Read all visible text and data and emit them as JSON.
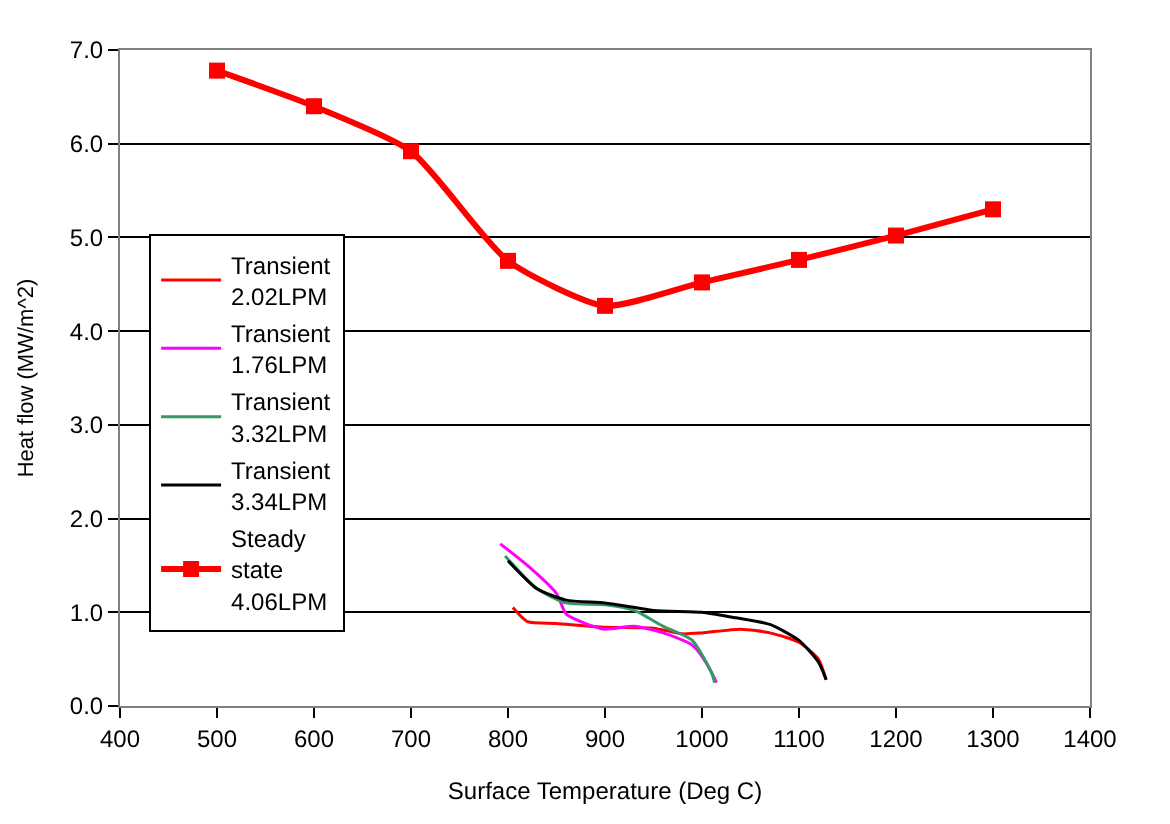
{
  "chart_data": {
    "type": "line",
    "xlabel": "Surface Temperature (Deg C)",
    "ylabel": "Heat flow (MW/m^2)",
    "xlim": [
      400,
      1400
    ],
    "xticks": [
      400,
      500,
      600,
      700,
      800,
      900,
      1000,
      1100,
      1200,
      1300,
      1400
    ],
    "ylim": [
      0,
      7
    ],
    "yticks": [
      {
        "value": 0,
        "label": "0.0"
      },
      {
        "value": 1,
        "label": "1.0"
      },
      {
        "value": 2,
        "label": "2.0"
      },
      {
        "value": 3,
        "label": "3.0"
      },
      {
        "value": 4,
        "label": "4.0"
      },
      {
        "value": 5,
        "label": "5.0"
      },
      {
        "value": 6,
        "label": "6.0"
      },
      {
        "value": 7,
        "label": "7.0"
      }
    ],
    "grid": "y",
    "legend": "left",
    "series": [
      {
        "name": "Transient 2.02LPM",
        "color": "#ff0000",
        "marker": "none",
        "x": [
          805,
          820,
          850,
          900,
          950,
          980,
          1000,
          1040,
          1070,
          1100,
          1120,
          1128
        ],
        "values": [
          1.05,
          0.9,
          0.88,
          0.84,
          0.83,
          0.77,
          0.78,
          0.82,
          0.78,
          0.68,
          0.5,
          0.28
        ]
      },
      {
        "name": "Transient 1.76LPM",
        "color": "#ff00ff",
        "marker": "none",
        "x": [
          792,
          820,
          850,
          860,
          880,
          900,
          930,
          960,
          990,
          1005,
          1015
        ],
        "values": [
          1.73,
          1.5,
          1.2,
          0.98,
          0.88,
          0.82,
          0.85,
          0.78,
          0.65,
          0.45,
          0.25
        ]
      },
      {
        "name": "Transient 3.32LPM",
        "color": "#339966",
        "marker": "none",
        "x": [
          797,
          830,
          860,
          900,
          930,
          960,
          990,
          1010,
          1013
        ],
        "values": [
          1.6,
          1.25,
          1.1,
          1.08,
          1.02,
          0.85,
          0.7,
          0.35,
          0.25
        ]
      },
      {
        "name": "Transient 3.34LPM",
        "color": "#000000",
        "marker": "none",
        "x": [
          800,
          830,
          860,
          900,
          950,
          1000,
          1030,
          1070,
          1100,
          1120,
          1128
        ],
        "values": [
          1.55,
          1.25,
          1.13,
          1.1,
          1.02,
          1.0,
          0.95,
          0.87,
          0.7,
          0.47,
          0.28
        ]
      },
      {
        "name": "Steady state 4.06LPM",
        "color": "#ff0000",
        "marker": "square",
        "x": [
          500,
          600,
          700,
          800,
          900,
          1000,
          1100,
          1200,
          1300
        ],
        "values": [
          6.78,
          6.4,
          5.92,
          4.75,
          4.27,
          4.52,
          4.76,
          5.02,
          5.3
        ]
      }
    ]
  }
}
